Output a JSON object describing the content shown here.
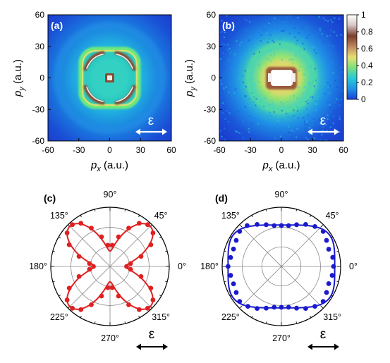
{
  "panels": {
    "a": {
      "label": "(a)"
    },
    "b": {
      "label": "(b)"
    },
    "c": {
      "label": "(c)"
    },
    "d": {
      "label": "(d)"
    }
  },
  "polarization_symbol": "ε",
  "colorscale": [
    "#1a3fd8",
    "#1f8fe6",
    "#27c9d9",
    "#7fe07a",
    "#e8e070",
    "#c08a63",
    "#7a3d2c",
    "#f0ecec",
    "#ffffff"
  ],
  "chart_data": [
    {
      "type": "heatmap",
      "panel": "(a)",
      "x_axis": {
        "var": "p",
        "sub": "x",
        "unit": "(a.u.)",
        "ticks": [
          "-60",
          "-30",
          "0",
          "30",
          "60"
        ],
        "range": [
          -60,
          60
        ]
      },
      "y_axis": {
        "var": "p",
        "sub": "y",
        "unit": "(a.u.)",
        "ticks": [
          "-60",
          "-30",
          "0",
          "30",
          "60"
        ],
        "range": [
          -60,
          60
        ]
      },
      "description_values": {
        "rounded_square_outer_momentum": 32,
        "inner_lobe_momentum": 20,
        "center_momentum": 0
      }
    },
    {
      "type": "heatmap",
      "panel": "(b)",
      "x_axis": {
        "var": "p",
        "sub": "x",
        "unit": "(a.u.)",
        "ticks": [
          "-60",
          "-30",
          "0",
          "30",
          "60"
        ],
        "range": [
          -60,
          60
        ]
      },
      "y_axis": {
        "var": "p",
        "sub": "y",
        "unit": "(a.u.)",
        "ticks": [
          "-60",
          "-30",
          "0",
          "30",
          "60"
        ],
        "range": [
          -60,
          60
        ]
      },
      "colorbar": {
        "ticks": [
          "0",
          "0.2",
          "0.4",
          "0.6",
          "0.8",
          "1"
        ],
        "range": [
          0,
          1
        ]
      },
      "description_values": {
        "bright_core_momentum": 10,
        "ring_momentum": 25
      }
    },
    {
      "type": "scatter",
      "panel": "(c)",
      "coordinate_system": "polar",
      "angle_labels": [
        "0°",
        "45°",
        "90°",
        "135°",
        "180°",
        "225°",
        "270°",
        "315°"
      ],
      "color": "#e02020",
      "marker": "circle",
      "points": [
        {
          "theta": 0,
          "r": 0.28
        },
        {
          "theta": 8,
          "r": 0.35
        },
        {
          "theta": 18,
          "r": 0.55
        },
        {
          "theta": 28,
          "r": 0.78
        },
        {
          "theta": 38,
          "r": 0.92
        },
        {
          "theta": 48,
          "r": 0.95
        },
        {
          "theta": 56,
          "r": 0.88
        },
        {
          "theta": 64,
          "r": 0.72
        },
        {
          "theta": 74,
          "r": 0.52
        },
        {
          "theta": 84,
          "r": 0.36
        },
        {
          "theta": 96,
          "r": 0.36
        },
        {
          "theta": 106,
          "r": 0.52
        },
        {
          "theta": 116,
          "r": 0.72
        },
        {
          "theta": 124,
          "r": 0.88
        },
        {
          "theta": 132,
          "r": 0.95
        },
        {
          "theta": 142,
          "r": 0.92
        },
        {
          "theta": 152,
          "r": 0.78
        },
        {
          "theta": 162,
          "r": 0.55
        },
        {
          "theta": 172,
          "r": 0.35
        },
        {
          "theta": 180,
          "r": 0.28
        },
        {
          "theta": 188,
          "r": 0.35
        },
        {
          "theta": 198,
          "r": 0.55
        },
        {
          "theta": 208,
          "r": 0.78
        },
        {
          "theta": 218,
          "r": 0.92
        },
        {
          "theta": 228,
          "r": 0.95
        },
        {
          "theta": 236,
          "r": 0.88
        },
        {
          "theta": 244,
          "r": 0.72
        },
        {
          "theta": 254,
          "r": 0.52
        },
        {
          "theta": 264,
          "r": 0.36
        },
        {
          "theta": 276,
          "r": 0.36
        },
        {
          "theta": 286,
          "r": 0.52
        },
        {
          "theta": 296,
          "r": 0.72
        },
        {
          "theta": 304,
          "r": 0.88
        },
        {
          "theta": 312,
          "r": 0.95
        },
        {
          "theta": 322,
          "r": 0.92
        },
        {
          "theta": 332,
          "r": 0.78
        },
        {
          "theta": 342,
          "r": 0.55
        },
        {
          "theta": 352,
          "r": 0.35
        }
      ],
      "fit_curve": {
        "form": "r = a + b*sin^2(2*theta)",
        "a": 0.26,
        "b": 0.7
      }
    },
    {
      "type": "scatter",
      "panel": "(d)",
      "coordinate_system": "polar",
      "angle_labels": [
        "0°",
        "45°",
        "90°",
        "135°",
        "180°",
        "225°",
        "270°",
        "315°"
      ],
      "color": "#1a1acd",
      "marker": "circle",
      "points": [
        {
          "theta": 0,
          "r": 0.88
        },
        {
          "theta": 10,
          "r": 0.88
        },
        {
          "theta": 20,
          "r": 0.85
        },
        {
          "theta": 30,
          "r": 0.88
        },
        {
          "theta": 40,
          "r": 0.92
        },
        {
          "theta": 50,
          "r": 0.88
        },
        {
          "theta": 60,
          "r": 0.82
        },
        {
          "theta": 70,
          "r": 0.75
        },
        {
          "theta": 80,
          "r": 0.7
        },
        {
          "theta": 90,
          "r": 0.69
        },
        {
          "theta": 100,
          "r": 0.7
        },
        {
          "theta": 110,
          "r": 0.75
        },
        {
          "theta": 120,
          "r": 0.82
        },
        {
          "theta": 130,
          "r": 0.9
        },
        {
          "theta": 140,
          "r": 0.92
        },
        {
          "theta": 150,
          "r": 0.88
        },
        {
          "theta": 160,
          "r": 0.86
        },
        {
          "theta": 170,
          "r": 0.87
        },
        {
          "theta": 180,
          "r": 0.9
        },
        {
          "theta": 190,
          "r": 0.87
        },
        {
          "theta": 200,
          "r": 0.86
        },
        {
          "theta": 210,
          "r": 0.88
        },
        {
          "theta": 220,
          "r": 0.92
        },
        {
          "theta": 230,
          "r": 0.88
        },
        {
          "theta": 240,
          "r": 0.82
        },
        {
          "theta": 250,
          "r": 0.75
        },
        {
          "theta": 260,
          "r": 0.7
        },
        {
          "theta": 270,
          "r": 0.69
        },
        {
          "theta": 280,
          "r": 0.7
        },
        {
          "theta": 290,
          "r": 0.75
        },
        {
          "theta": 300,
          "r": 0.82
        },
        {
          "theta": 310,
          "r": 0.88
        },
        {
          "theta": 320,
          "r": 0.92
        },
        {
          "theta": 330,
          "r": 0.88
        },
        {
          "theta": 340,
          "r": 0.85
        },
        {
          "theta": 350,
          "r": 0.87
        }
      ],
      "fit_curve": {
        "form": "rounded square, r ≈ 0.70 at 90°/270°, ≈ 0.90 at 0°/180°"
      }
    }
  ]
}
